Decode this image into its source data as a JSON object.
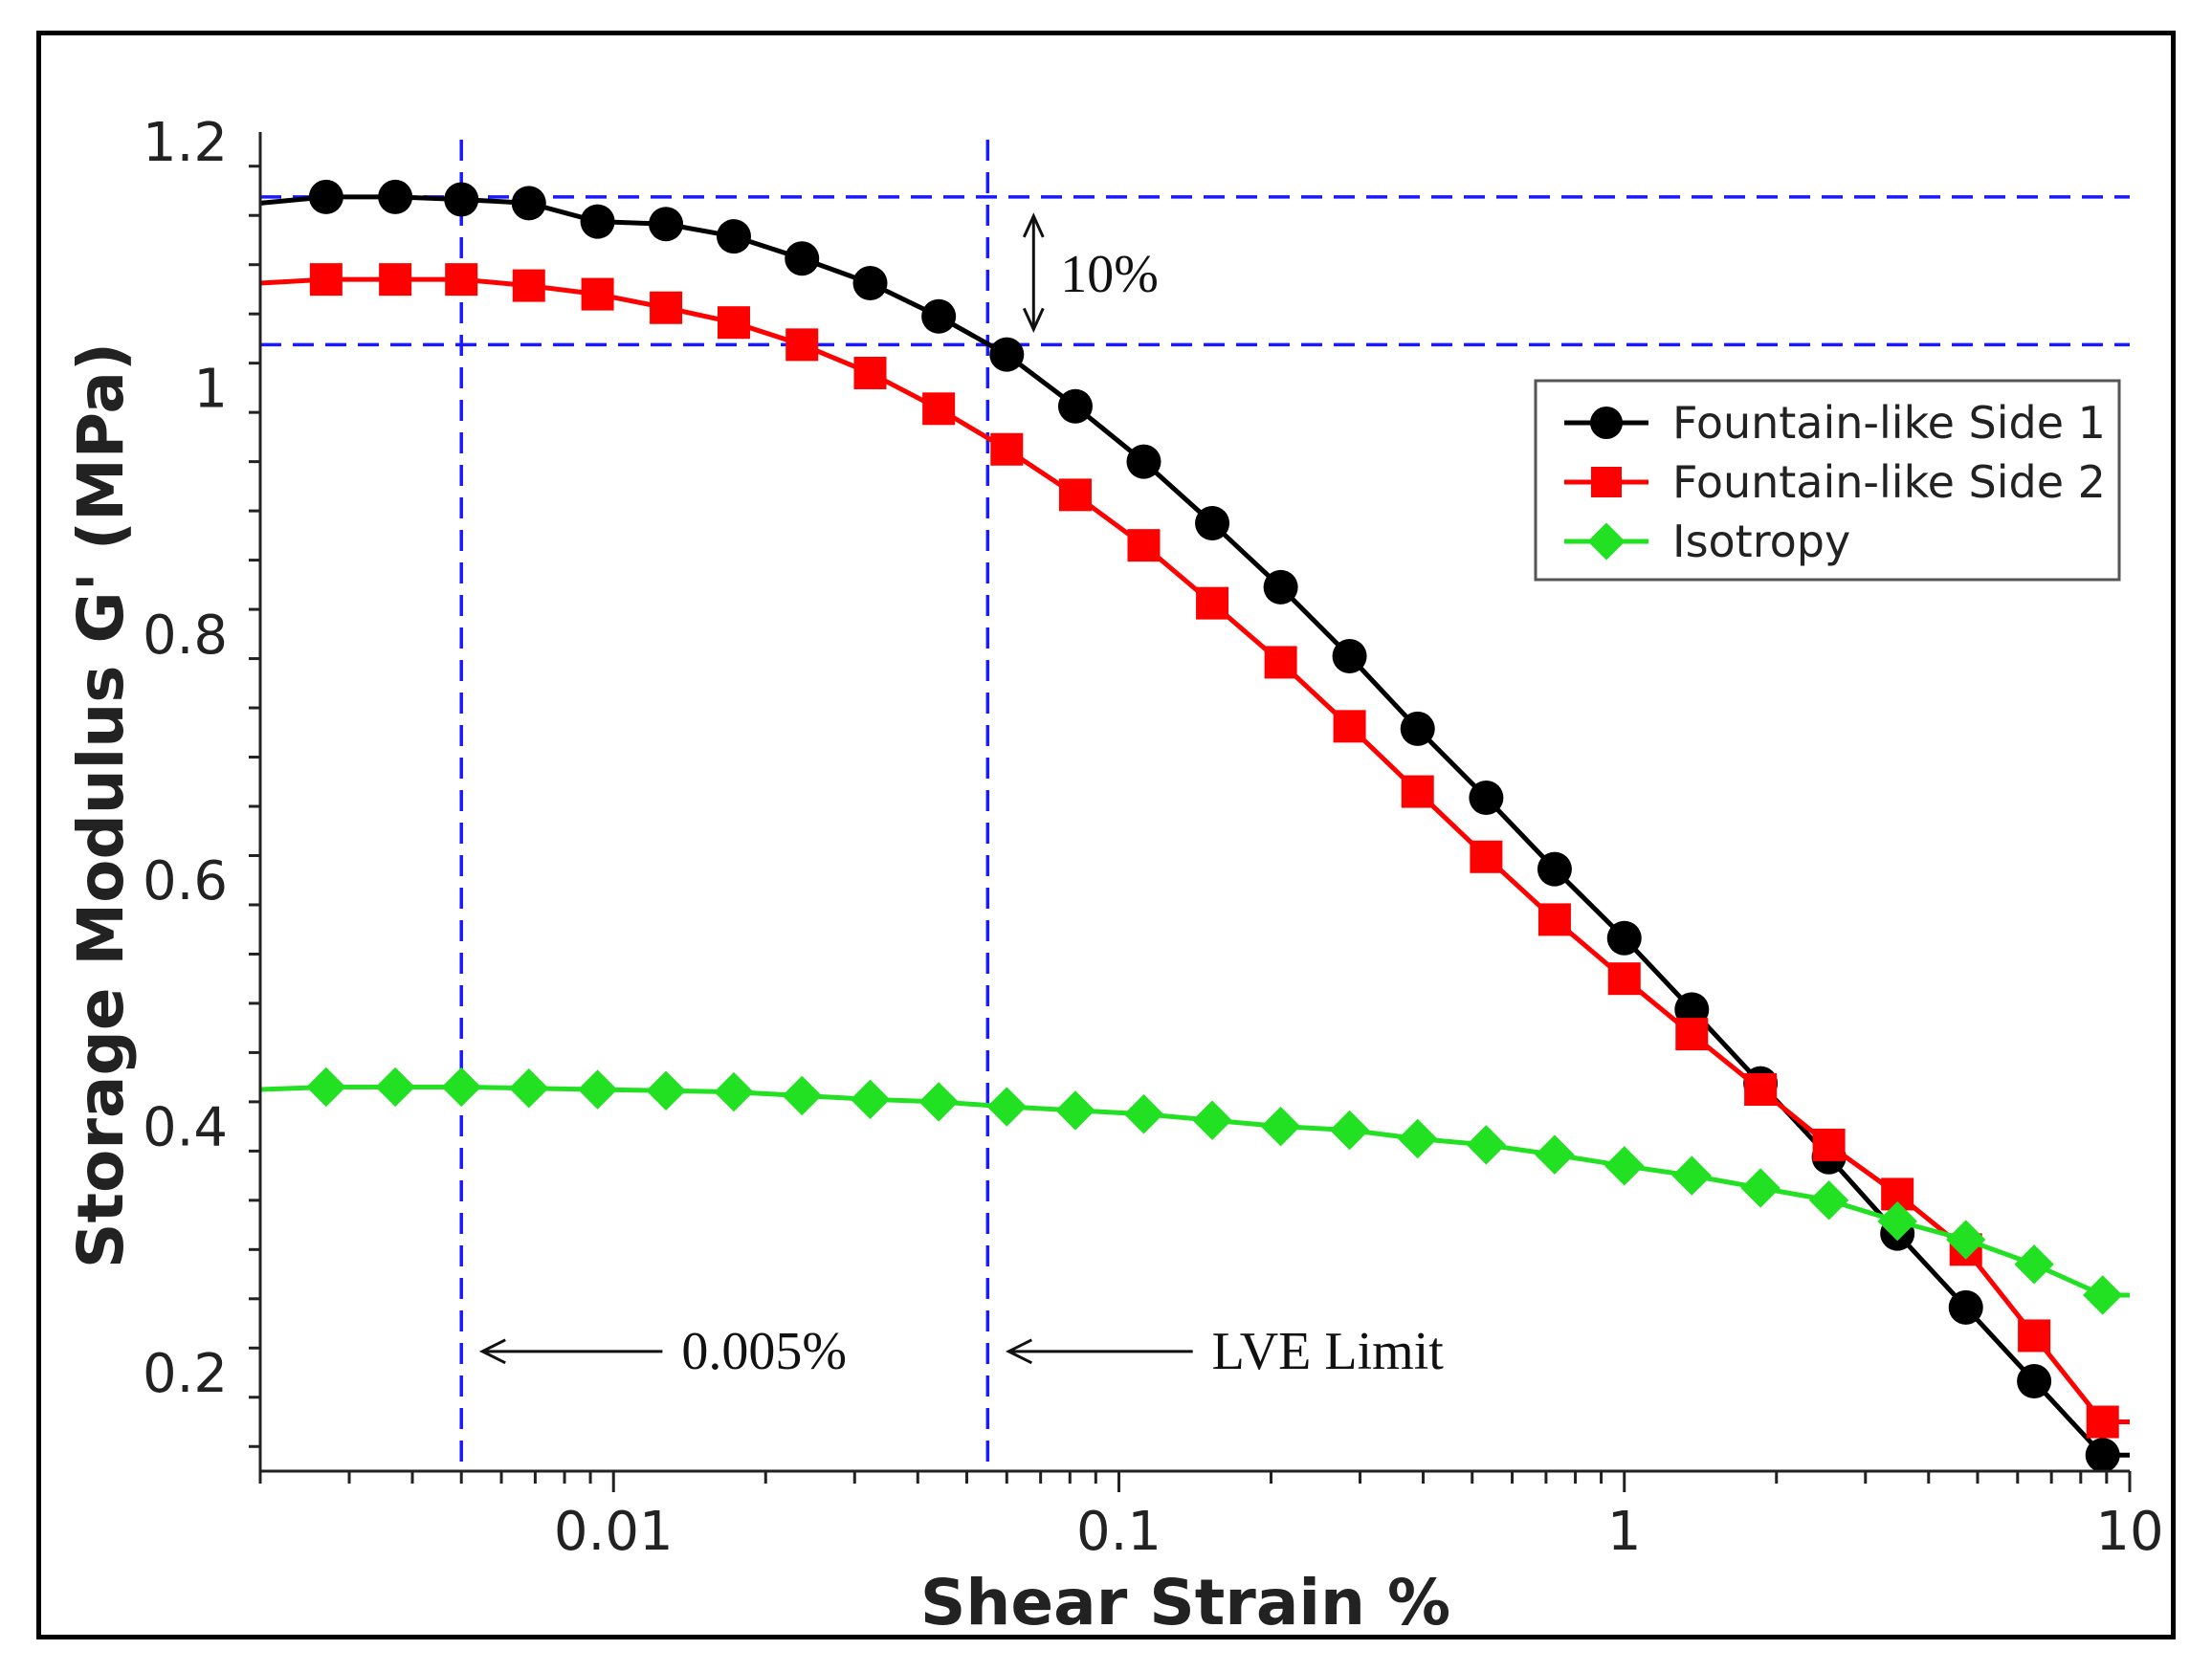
{
  "chart_data": {
    "type": "line",
    "title": "",
    "xlabel": "Shear Strain %",
    "ylabel": "Storage Modulus G' (MPa)",
    "x_scale": "log",
    "xlim": [
      0.002,
      10
    ],
    "ylim": [
      0.12,
      1.2
    ],
    "x_ticks": [
      {
        "value": 0.01,
        "label": "0.01"
      },
      {
        "value": 0.1,
        "label": "0.1"
      },
      {
        "value": 1,
        "label": "1"
      },
      {
        "value": 10,
        "label": "10"
      }
    ],
    "y_ticks": [
      {
        "value": 0.2,
        "label": "0.2"
      },
      {
        "value": 0.4,
        "label": "0.4"
      },
      {
        "value": 0.6,
        "label": "0.6"
      },
      {
        "value": 0.8,
        "label": "0.8"
      },
      {
        "value": 1.0,
        "label": "1"
      },
      {
        "value": 1.2,
        "label": "1.2"
      }
    ],
    "legend_position": "top-right",
    "series": [
      {
        "name": "Fountain-like Side 1",
        "color": "#000000",
        "marker": "circle",
        "line_start": 1.15,
        "x": [
          0.0027,
          0.0037,
          0.005,
          0.0068,
          0.0093,
          0.0127,
          0.0173,
          0.0236,
          0.0322,
          0.044,
          0.06,
          0.082,
          0.112,
          0.153,
          0.209,
          0.286,
          0.39,
          0.533,
          0.728,
          1.0,
          1.36,
          1.86,
          2.54,
          3.47,
          4.74,
          6.47,
          8.84
        ],
        "y": [
          1.155,
          1.155,
          1.153,
          1.15,
          1.135,
          1.133,
          1.123,
          1.105,
          1.085,
          1.058,
          1.027,
          0.985,
          0.94,
          0.89,
          0.838,
          0.782,
          0.723,
          0.667,
          0.609,
          0.553,
          0.495,
          0.435,
          0.375,
          0.313,
          0.253,
          0.193,
          0.133
        ]
      },
      {
        "name": "Fountain-like Side 2",
        "color": "#ff0000",
        "marker": "square",
        "line_start": 1.085,
        "x": [
          0.0027,
          0.0037,
          0.005,
          0.0068,
          0.0093,
          0.0127,
          0.0173,
          0.0236,
          0.0322,
          0.044,
          0.06,
          0.082,
          0.112,
          0.153,
          0.209,
          0.286,
          0.39,
          0.533,
          0.728,
          1.0,
          1.36,
          1.86,
          2.54,
          3.47,
          4.74,
          6.47,
          8.84
        ],
        "y": [
          1.088,
          1.088,
          1.088,
          1.083,
          1.076,
          1.065,
          1.053,
          1.035,
          1.012,
          0.983,
          0.95,
          0.913,
          0.872,
          0.825,
          0.777,
          0.725,
          0.672,
          0.619,
          0.568,
          0.52,
          0.475,
          0.43,
          0.385,
          0.345,
          0.3,
          0.23,
          0.16
        ]
      },
      {
        "name": "Isotropy",
        "color": "#22e022",
        "marker": "diamond",
        "line_start": 0.43,
        "x": [
          0.0027,
          0.0037,
          0.005,
          0.0068,
          0.0093,
          0.0127,
          0.0173,
          0.0236,
          0.0322,
          0.044,
          0.06,
          0.082,
          0.112,
          0.153,
          0.209,
          0.286,
          0.39,
          0.533,
          0.728,
          1.0,
          1.36,
          1.86,
          2.54,
          3.47,
          4.74,
          6.47,
          8.84
        ],
        "y": [
          0.432,
          0.432,
          0.432,
          0.431,
          0.43,
          0.429,
          0.428,
          0.425,
          0.422,
          0.42,
          0.416,
          0.413,
          0.41,
          0.405,
          0.4,
          0.397,
          0.39,
          0.385,
          0.377,
          0.368,
          0.36,
          0.35,
          0.34,
          0.323,
          0.308,
          0.288,
          0.263
        ]
      }
    ],
    "reference_lines": {
      "horizontal": [
        1.155,
        1.035
      ],
      "vertical": [
        0.005,
        0.055
      ],
      "color": "#1a1aff"
    },
    "annotations": [
      {
        "text": "10%",
        "kind": "double-arrow",
        "x": 0.06,
        "y_from": 1.035,
        "y_to": 1.155
      },
      {
        "text": "0.005%",
        "kind": "left-arrow",
        "x_from": 0.005,
        "x_to": 0.0125,
        "y": 0.26
      },
      {
        "text": "LVE Limit",
        "kind": "left-arrow",
        "x_from": 0.055,
        "x_to": 0.14,
        "y": 0.26
      }
    ]
  }
}
